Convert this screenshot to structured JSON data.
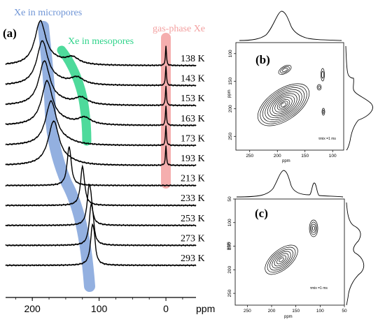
{
  "chart_data": [
    {
      "panel": "(a)",
      "type": "line",
      "xlabel": "ppm",
      "x_ticks": [
        "200",
        "100",
        "0"
      ],
      "xlim": [
        240,
        -45
      ],
      "region_labels": [
        {
          "text": "Xe in micropores",
          "color": "#6f95d6"
        },
        {
          "text": "Xe in mesopores",
          "color": "#2fd38a"
        },
        {
          "text": "gas-phase Xe",
          "color": "#f3a0a0"
        }
      ],
      "series": [
        {
          "name": "138 K",
          "micro_peak": 188,
          "meso_peak": 140,
          "gas_peak": 0
        },
        {
          "name": "143 K",
          "micro_peak": 185,
          "meso_peak": 133,
          "gas_peak": 0
        },
        {
          "name": "153 K",
          "micro_peak": 182,
          "meso_peak": 127,
          "gas_peak": 0
        },
        {
          "name": "163 K",
          "micro_peak": 178,
          "meso_peak": 122,
          "gas_peak": 0
        },
        {
          "name": "173 K",
          "micro_peak": 172,
          "meso_peak": null,
          "gas_peak": 0
        },
        {
          "name": "193 K",
          "micro_peak": 168,
          "meso_peak": null,
          "gas_peak": 0
        },
        {
          "name": "213 K",
          "micro_peak": 145,
          "meso_peak": null,
          "gas_peak": null
        },
        {
          "name": "233 K",
          "micro_peak": 125,
          "meso_peak": null,
          "gas_peak": null
        },
        {
          "name": "253 K",
          "micro_peak": 115,
          "meso_peak": null,
          "gas_peak": null
        },
        {
          "name": "273 K",
          "micro_peak": 112,
          "meso_peak": null,
          "gas_peak": null
        },
        {
          "name": "293 K",
          "micro_peak": 110,
          "meso_peak": null,
          "gas_peak": null
        }
      ]
    },
    {
      "panel": "(b)",
      "type": "heatmap",
      "xlabel": "ppm",
      "ylabel": "ppm",
      "x_ticks": [
        "250",
        "200",
        "150",
        "100"
      ],
      "y_ticks": [
        "100",
        "150",
        "200",
        "250"
      ],
      "xlim": [
        275,
        80
      ],
      "ylim": [
        80,
        275
      ],
      "annotation": "τmix =1 ms"
    },
    {
      "panel": "(c)",
      "type": "heatmap",
      "xlabel": "ppm",
      "ylabel": "ppm",
      "x_ticks": [
        "250",
        "200",
        "150",
        "100",
        "50"
      ],
      "y_ticks": [
        "50",
        "100",
        "150",
        "200",
        "250"
      ],
      "xlim": [
        275,
        50
      ],
      "ylim": [
        50,
        275
      ],
      "annotation": "τmix =1 ms"
    }
  ]
}
